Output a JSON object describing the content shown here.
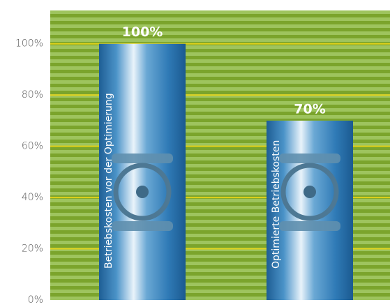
{
  "chart_data": {
    "type": "bar",
    "categories": [
      "Betriebskosten vor der Optimierung",
      "Optimierte Betriebskosten"
    ],
    "values": [
      100,
      70
    ],
    "value_labels": [
      "100%",
      "70%"
    ],
    "ylim": [
      0,
      113
    ],
    "yticks": [
      {
        "value": 0,
        "label": "0%"
      },
      {
        "value": 20,
        "label": "20%"
      },
      {
        "value": 40,
        "label": "40%"
      },
      {
        "value": 60,
        "label": "60%"
      },
      {
        "value": 80,
        "label": "80%"
      },
      {
        "value": 100,
        "label": "100%"
      }
    ],
    "grid": true,
    "color": "#3a86bd"
  }
}
